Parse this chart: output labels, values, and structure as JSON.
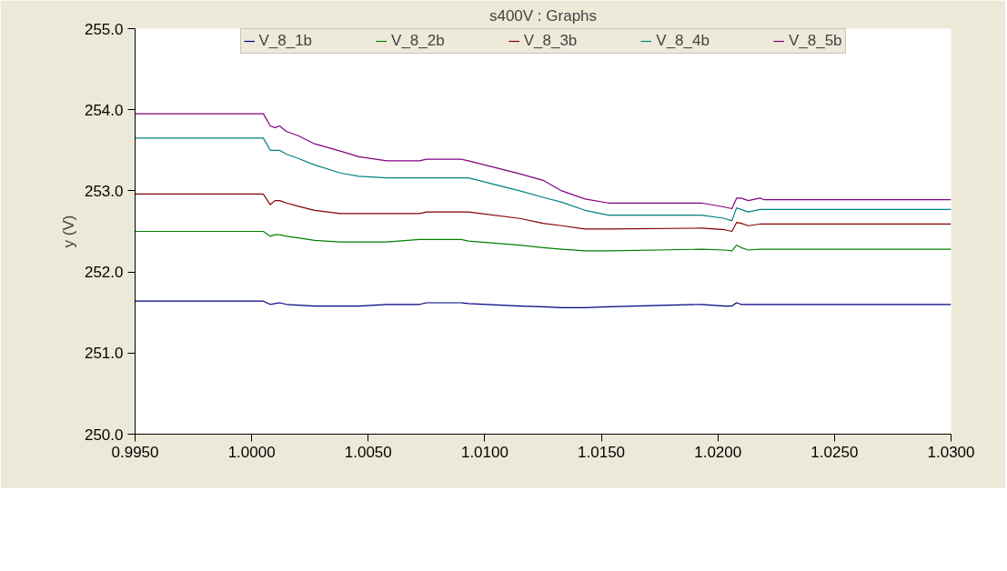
{
  "chart_data": {
    "type": "line",
    "title": "s400V : Graphs",
    "ylabel": "y (V)",
    "x": [
      0.995,
      1.0005,
      1.0008,
      1.001,
      1.0012,
      1.0015,
      1.002,
      1.0027,
      1.0038,
      1.0046,
      1.0058,
      1.0072,
      1.0075,
      1.009,
      1.0093,
      1.0115,
      1.0125,
      1.0133,
      1.0143,
      1.0153,
      1.0193,
      1.0203,
      1.0206,
      1.0208,
      1.021,
      1.0213,
      1.0218,
      1.022,
      1.03
    ],
    "series": [
      {
        "name": "V_8_1b",
        "color": "#000080",
        "values": [
          251.64,
          251.64,
          251.6,
          251.61,
          251.62,
          251.6,
          251.59,
          251.58,
          251.58,
          251.58,
          251.6,
          251.6,
          251.62,
          251.62,
          251.61,
          251.58,
          251.57,
          251.56,
          251.56,
          251.57,
          251.6,
          251.58,
          251.58,
          251.62,
          251.6,
          251.6,
          251.6,
          251.6,
          251.6
        ]
      },
      {
        "name": "V_8_2b",
        "color": "#008000",
        "values": [
          252.5,
          252.5,
          252.44,
          252.46,
          252.46,
          252.44,
          252.42,
          252.39,
          252.37,
          252.37,
          252.37,
          252.4,
          252.4,
          252.4,
          252.38,
          252.33,
          252.3,
          252.28,
          252.26,
          252.26,
          252.28,
          252.27,
          252.26,
          252.33,
          252.3,
          252.27,
          252.28,
          252.28,
          252.28
        ]
      },
      {
        "name": "V_8_3b",
        "color": "#800000",
        "values": [
          252.96,
          252.96,
          252.83,
          252.88,
          252.88,
          252.85,
          252.81,
          252.76,
          252.72,
          252.72,
          252.72,
          252.72,
          252.74,
          252.74,
          252.74,
          252.66,
          252.6,
          252.57,
          252.53,
          252.53,
          252.54,
          252.52,
          252.5,
          252.61,
          252.6,
          252.57,
          252.59,
          252.59,
          252.59
        ]
      },
      {
        "name": "V_8_4b",
        "color": "#008080",
        "values": [
          253.65,
          253.65,
          253.5,
          253.5,
          253.5,
          253.45,
          253.4,
          253.32,
          253.22,
          253.18,
          253.16,
          253.16,
          253.16,
          253.16,
          253.16,
          253.0,
          252.92,
          252.86,
          252.76,
          252.7,
          252.7,
          252.66,
          252.63,
          252.79,
          252.77,
          252.74,
          252.77,
          252.77,
          252.77
        ]
      },
      {
        "name": "V_8_5b",
        "color": "#800080",
        "values": [
          253.95,
          253.95,
          253.8,
          253.78,
          253.8,
          253.73,
          253.68,
          253.58,
          253.49,
          253.42,
          253.37,
          253.37,
          253.39,
          253.39,
          253.37,
          253.21,
          253.13,
          253.0,
          252.9,
          252.85,
          252.85,
          252.8,
          252.78,
          252.91,
          252.91,
          252.88,
          252.91,
          252.89,
          252.89
        ]
      }
    ],
    "xlim": [
      0.995,
      1.03
    ],
    "xticks": [
      {
        "value": 0.995,
        "label": "0.9950"
      },
      {
        "value": 1.0,
        "label": "1.0000"
      },
      {
        "value": 1.005,
        "label": "1.0050"
      },
      {
        "value": 1.01,
        "label": "1.0100"
      },
      {
        "value": 1.015,
        "label": "1.0150"
      },
      {
        "value": 1.02,
        "label": "1.0200"
      },
      {
        "value": 1.025,
        "label": "1.0250"
      },
      {
        "value": 1.03,
        "label": "1.0300"
      }
    ],
    "ylim": [
      250,
      255
    ],
    "yticks": [
      {
        "value": 250,
        "label": "250.0"
      },
      {
        "value": 251,
        "label": "251.0"
      },
      {
        "value": 252,
        "label": "252.0"
      },
      {
        "value": 253,
        "label": "253.0"
      },
      {
        "value": 254,
        "label": "254.0"
      },
      {
        "value": 255,
        "label": "255.0"
      }
    ],
    "grid": false,
    "legend": "top",
    "marker": "none",
    "line_style": "solid"
  }
}
